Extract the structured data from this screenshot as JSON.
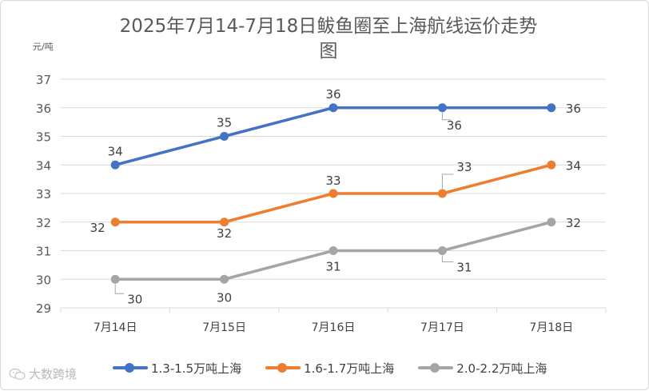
{
  "chart_data": {
    "type": "line",
    "title_line1": "2025年7月14-7月18日鲅鱼圈至上海航线运价走势",
    "title_line2": "图",
    "ylabel": "元/吨",
    "categories": [
      "7月14日",
      "7月15日",
      "7月16日",
      "7月17日",
      "7月18日"
    ],
    "ylim": [
      29,
      37
    ],
    "yticks": [
      29,
      30,
      31,
      32,
      33,
      34,
      35,
      36,
      37
    ],
    "grid": true,
    "legend_position": "bottom",
    "series": [
      {
        "name": "1.3-1.5万吨上海",
        "color": "#4472c4",
        "values": [
          34,
          35,
          36,
          36,
          36
        ]
      },
      {
        "name": "1.6-1.7万吨上海",
        "color": "#ed7d31",
        "values": [
          32,
          32,
          33,
          33,
          34
        ]
      },
      {
        "name": "2.0-2.2万吨上海",
        "color": "#a5a5a5",
        "values": [
          30,
          30,
          31,
          31,
          32
        ]
      }
    ]
  },
  "watermark": {
    "text": "大数跨境",
    "icon": "wechat-logo-icon"
  }
}
